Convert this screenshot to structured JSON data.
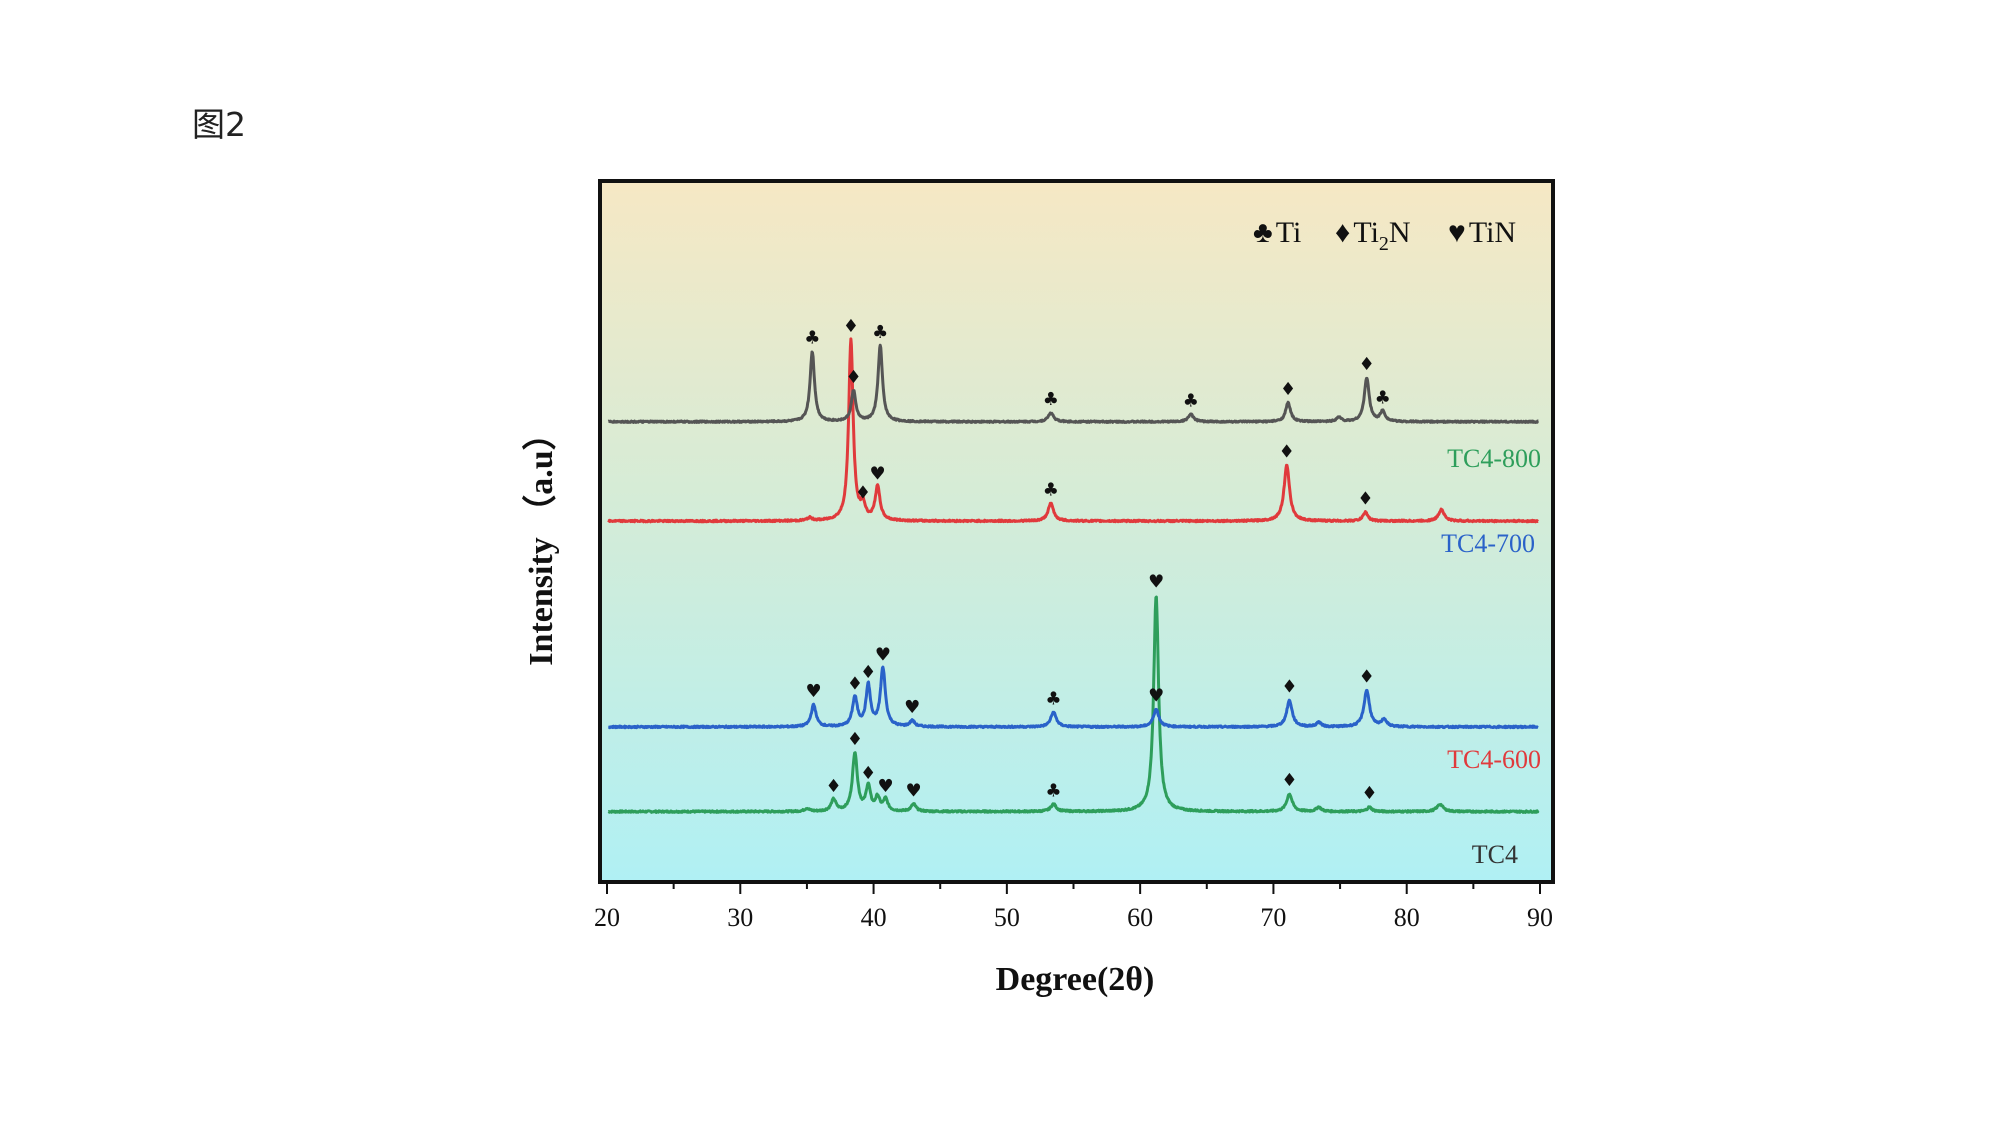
{
  "figure_label": "图2",
  "chart_data": {
    "type": "line",
    "title": "",
    "xlabel": "Degree(2θ)",
    "ylabel": "Intensity （a.u）",
    "xlim": [
      20,
      90
    ],
    "xticks": [
      20,
      30,
      40,
      50,
      60,
      70,
      80,
      90
    ],
    "yticks": [],
    "grid": false,
    "legend": {
      "placement": "top-right",
      "entries": [
        {
          "symbol": "♣",
          "text": "Ti"
        },
        {
          "symbol": "♦",
          "text": "Ti",
          "sub": "2",
          "suffix": "N"
        },
        {
          "symbol": "♥",
          "text": "TiN"
        }
      ]
    },
    "offset_units": "arbitrary, stacked (a.u.)",
    "series": [
      {
        "name": "TC4-800",
        "color": "#2e9e5b",
        "baseline": 40,
        "noise": 0.55,
        "peaks": [
          {
            "x": 35.0,
            "h": 2,
            "w": 0.22
          },
          {
            "x": 37.0,
            "h": 8,
            "w": 0.22,
            "marker": "♦"
          },
          {
            "x": 38.6,
            "h": 40,
            "w": 0.22,
            "marker": "♦"
          },
          {
            "x": 39.6,
            "h": 17,
            "w": 0.2,
            "marker": "♦"
          },
          {
            "x": 40.3,
            "h": 9,
            "w": 0.2
          },
          {
            "x": 40.9,
            "h": 8,
            "w": 0.2,
            "marker": "♥"
          },
          {
            "x": 43.0,
            "h": 5,
            "w": 0.22,
            "marker": "♥"
          },
          {
            "x": 53.5,
            "h": 5,
            "w": 0.25,
            "marker": "♣"
          },
          {
            "x": 61.2,
            "h": 148,
            "w": 0.22,
            "marker": "♥"
          },
          {
            "x": 71.2,
            "h": 12,
            "w": 0.25,
            "marker": "♦"
          },
          {
            "x": 73.4,
            "h": 3,
            "w": 0.22
          },
          {
            "x": 77.2,
            "h": 3,
            "w": 0.22,
            "marker": "♦"
          },
          {
            "x": 82.5,
            "h": 5,
            "w": 0.28
          }
        ],
        "label": "TC4-800"
      },
      {
        "name": "TC4-700",
        "color": "#2a62c9",
        "baseline": 98,
        "noise": 0.55,
        "peaks": [
          {
            "x": 35.5,
            "h": 15,
            "w": 0.22,
            "marker": "♥"
          },
          {
            "x": 38.6,
            "h": 20,
            "w": 0.22,
            "marker": "♦"
          },
          {
            "x": 39.6,
            "h": 28,
            "w": 0.2,
            "marker": "♦"
          },
          {
            "x": 40.7,
            "h": 40,
            "w": 0.22,
            "marker": "♥"
          },
          {
            "x": 42.9,
            "h": 4,
            "w": 0.22,
            "marker": "♥"
          },
          {
            "x": 53.5,
            "h": 10,
            "w": 0.25,
            "marker": "♣"
          },
          {
            "x": 61.2,
            "h": 12,
            "w": 0.25,
            "marker": "♥"
          },
          {
            "x": 71.2,
            "h": 18,
            "w": 0.25,
            "marker": "♦"
          },
          {
            "x": 73.4,
            "h": 3,
            "w": 0.22
          },
          {
            "x": 77.0,
            "h": 25,
            "w": 0.25,
            "marker": "♦"
          },
          {
            "x": 78.3,
            "h": 5,
            "w": 0.22
          }
        ],
        "label": "TC4-700"
      },
      {
        "name": "TC4-600",
        "color": "#e03a3c",
        "baseline": 239,
        "noise": 0.55,
        "peaks": [
          {
            "x": 35.2,
            "h": 2,
            "w": 0.22
          },
          {
            "x": 38.3,
            "h": 124,
            "w": 0.2,
            "marker": "♦"
          },
          {
            "x": 39.2,
            "h": 10,
            "w": 0.2,
            "marker": "♦"
          },
          {
            "x": 40.3,
            "h": 23,
            "w": 0.22,
            "marker": "♥"
          },
          {
            "x": 53.3,
            "h": 12,
            "w": 0.25,
            "marker": "♣"
          },
          {
            "x": 71.0,
            "h": 38,
            "w": 0.25,
            "marker": "♦"
          },
          {
            "x": 76.9,
            "h": 6,
            "w": 0.22,
            "marker": "♦"
          },
          {
            "x": 82.6,
            "h": 8,
            "w": 0.25
          }
        ],
        "label": "TC4-600"
      },
      {
        "name": "TC4",
        "color": "#555555",
        "baseline": 307,
        "noise": 0.5,
        "peaks": [
          {
            "x": 35.4,
            "h": 48,
            "w": 0.2,
            "marker": "♣"
          },
          {
            "x": 38.5,
            "h": 21,
            "w": 0.2,
            "marker": "♦"
          },
          {
            "x": 40.5,
            "h": 52,
            "w": 0.2,
            "marker": "♣"
          },
          {
            "x": 53.3,
            "h": 6,
            "w": 0.25,
            "marker": "♣"
          },
          {
            "x": 63.8,
            "h": 5,
            "w": 0.25,
            "marker": "♣"
          },
          {
            "x": 71.1,
            "h": 13,
            "w": 0.22,
            "marker": "♦"
          },
          {
            "x": 74.9,
            "h": 3,
            "w": 0.22
          },
          {
            "x": 77.0,
            "h": 30,
            "w": 0.22,
            "marker": "♦"
          },
          {
            "x": 78.2,
            "h": 7,
            "w": 0.22,
            "marker": "♣"
          }
        ],
        "label": "TC4"
      }
    ]
  }
}
